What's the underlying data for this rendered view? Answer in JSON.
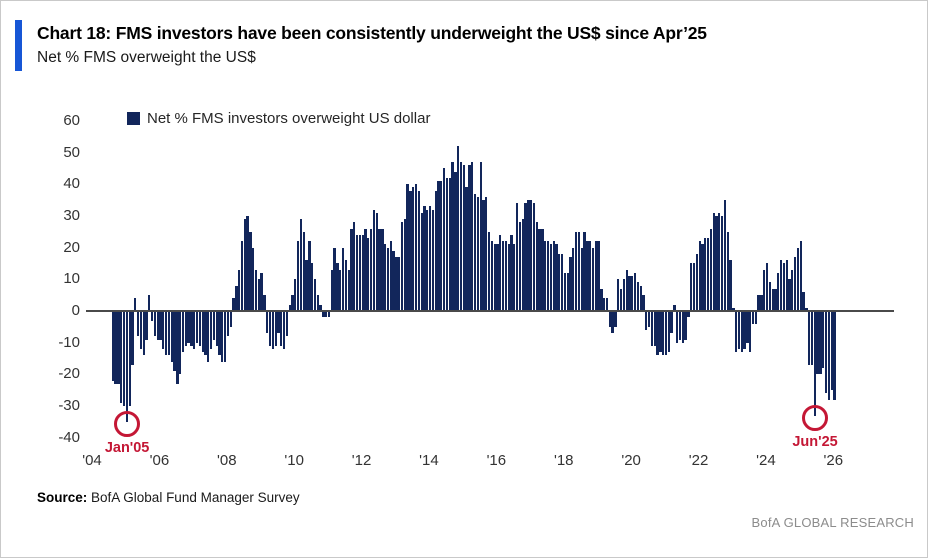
{
  "header": {
    "title": "Chart 18: FMS investors have been consistently underweight the US$ since Apr’25",
    "subtitle": "Net % FMS overweight the US$"
  },
  "legend": {
    "label": "Net % FMS investors overweight US dollar"
  },
  "source": {
    "label": "Source:",
    "text": " BofA Global Fund Manager Survey"
  },
  "footer": {
    "brand": "BofA GLOBAL RESEARCH"
  },
  "colors": {
    "bar": "#12265B",
    "accent": "#1656D6",
    "annotation": "#C41735",
    "axis": "#4a4a4a"
  },
  "chart_data": {
    "type": "bar",
    "title": "Net % FMS investors overweight US dollar",
    "xlabel": "",
    "ylabel": "Net % FMS overweight the US$",
    "ylim": [
      -40,
      60
    ],
    "y_ticks": [
      60,
      50,
      40,
      30,
      20,
      10,
      0,
      -10,
      -20,
      -30,
      -40
    ],
    "x_ticks": [
      "'04",
      "'06",
      "'08",
      "'10",
      "'12",
      "'14",
      "'16",
      "'18",
      "'20",
      "'22",
      "'24",
      "'26"
    ],
    "grid": false,
    "legend_position": "top-left",
    "frequency": "monthly",
    "start_month": "2004-08",
    "end_month": "2026-01",
    "annotations": [
      {
        "label": "Jan'05",
        "month": "2005-01",
        "value": -35,
        "marker": "circle"
      },
      {
        "label": "Jun'25",
        "month": "2025-06",
        "value": -33,
        "marker": "circle"
      }
    ],
    "values": [
      -22,
      -23,
      -23,
      -29,
      -30,
      -35,
      -30,
      -17,
      4,
      -8,
      -12,
      -14,
      -9,
      5,
      -3,
      -8,
      -9,
      -9,
      -12,
      -14,
      -14,
      -16,
      -19,
      -23,
      -20,
      -13,
      -11,
      -10,
      -11,
      -12,
      -10,
      -11,
      -13,
      -14,
      -16,
      -12,
      -9,
      -11,
      -14,
      -16,
      -16,
      -8,
      -5,
      4,
      8,
      13,
      22,
      29,
      30,
      25,
      20,
      13,
      10,
      12,
      5,
      -7,
      -11,
      -12,
      -11,
      -7,
      -11,
      -12,
      -8,
      2,
      5,
      10,
      22,
      29,
      25,
      16,
      22,
      15,
      10,
      5,
      2,
      -2,
      -2,
      -2,
      13,
      20,
      15,
      13,
      20,
      16,
      13,
      26,
      28,
      24,
      24,
      24,
      26,
      23,
      26,
      32,
      31,
      26,
      26,
      21,
      20,
      22,
      19,
      17,
      17,
      28,
      29,
      40,
      38,
      39,
      40,
      38,
      31,
      33,
      32,
      33,
      32,
      38,
      41,
      41,
      45,
      42,
      42,
      47,
      44,
      52,
      47,
      46,
      39,
      46,
      47,
      37,
      36,
      47,
      35,
      36,
      25,
      22,
      21,
      21,
      24,
      22,
      22,
      21,
      24,
      21,
      34,
      28,
      29,
      34,
      35,
      35,
      34,
      28,
      26,
      26,
      22,
      22,
      21,
      22,
      21,
      18,
      18,
      12,
      12,
      17,
      20,
      25,
      25,
      20,
      25,
      22,
      22,
      20,
      22,
      22,
      7,
      4,
      4,
      -5,
      -7,
      -5,
      10,
      7,
      10,
      13,
      11,
      11,
      12,
      9,
      8,
      5,
      -6,
      -5,
      -11,
      -11,
      -14,
      -13,
      -14,
      -14,
      -13,
      -7,
      2,
      -10,
      -9,
      -10,
      -9,
      -2,
      15,
      15,
      18,
      22,
      21,
      23,
      23,
      26,
      31,
      30,
      31,
      30,
      35,
      25,
      16,
      1,
      -13,
      -12,
      -13,
      -12,
      -10,
      -13,
      -4,
      -4,
      5,
      5,
      13,
      15,
      9,
      7,
      7,
      12,
      16,
      15,
      16,
      10,
      13,
      17,
      20,
      22,
      6,
      1,
      -17,
      -17,
      -33,
      -20,
      -20,
      -18,
      -26,
      -28,
      -25,
      -28
    ]
  }
}
